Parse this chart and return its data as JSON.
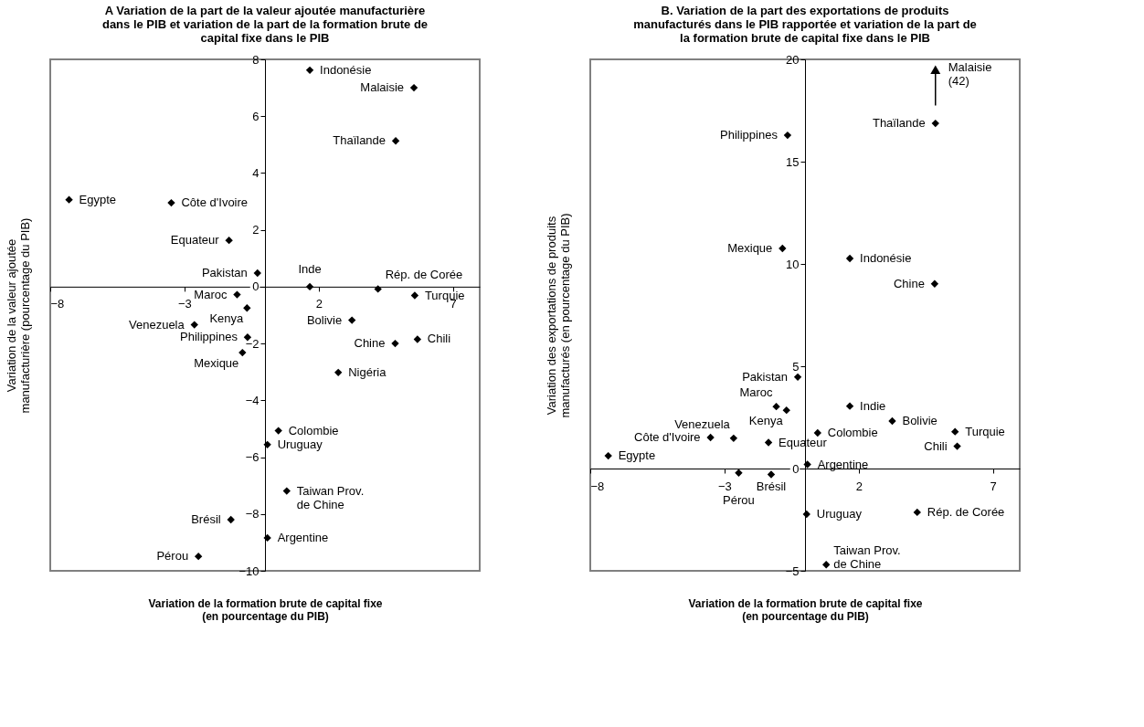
{
  "chart_data": [
    {
      "type": "scatter",
      "title": "A  Variation de la part de la valeur ajoutée manufacturière dans le PIB et variation de la part de la formation brute de capital fixe dans le PIB",
      "xlabel": "Variation de la formation brute de capital fixe (en pourcentage du PIB)",
      "ylabel": "Variation de la valeur ajoutée manufacturière (pourcentage du PIB)",
      "xlim": [
        -8,
        8
      ],
      "ylim": [
        -10,
        8
      ],
      "xticks": [
        -8,
        -3,
        2,
        7
      ],
      "yticks": [
        -10,
        -8,
        -6,
        -4,
        -2,
        0,
        2,
        4,
        6,
        8
      ],
      "grid": false,
      "marker": "diamond",
      "series": [
        {
          "color": "#000000",
          "x": [
            1.67,
            5.55,
            4.87,
            -7.3,
            -3.49,
            -1.34,
            -0.28,
            1.67,
            4.21,
            -1.04,
            5.58,
            -0.67,
            -2.63,
            3.24,
            -0.65,
            -0.84,
            4.85,
            5.68,
            2.73,
            0.5,
            0.09,
            0.81,
            -1.27,
            0.09,
            -2.48
          ],
          "values": [
            7.62,
            7.0,
            5.13,
            3.06,
            2.95,
            1.63,
            0.48,
            0.0,
            -0.08,
            -0.28,
            -0.31,
            -0.75,
            -1.34,
            -1.18,
            -1.78,
            -2.32,
            -2.0,
            -1.85,
            -3.02,
            -5.07,
            -5.56,
            -7.19,
            -8.2,
            -8.84,
            -9.49
          ]
        }
      ],
      "annotations": [
        {
          "text": "Indonésie",
          "x": 1.67,
          "y": 7.62
        },
        {
          "text": "Malaisie",
          "x": 5.55,
          "y": 7.0
        },
        {
          "text": "Thaïlande",
          "x": 4.87,
          "y": 5.13
        },
        {
          "text": "Egypte",
          "x": -7.3,
          "y": 3.06
        },
        {
          "text": "Côte d'Ivoire",
          "x": -3.49,
          "y": 2.95
        },
        {
          "text": "Equateur",
          "x": -1.34,
          "y": 1.63
        },
        {
          "text": "Pakistan",
          "x": -0.28,
          "y": 0.48
        },
        {
          "text": "Inde",
          "x": 1.67,
          "y": 0.0
        },
        {
          "text": "Rép. de Corée",
          "x": 4.21,
          "y": -0.08
        },
        {
          "text": "Maroc",
          "x": -1.04,
          "y": -0.28
        },
        {
          "text": "Turquie",
          "x": 5.58,
          "y": -0.31
        },
        {
          "text": "Kenya",
          "x": -0.67,
          "y": -0.75
        },
        {
          "text": "Venezuela",
          "x": -2.63,
          "y": -1.34
        },
        {
          "text": "Bolivie",
          "x": 3.24,
          "y": -1.18
        },
        {
          "text": "Philippines",
          "x": -0.65,
          "y": -1.78
        },
        {
          "text": "Mexique",
          "x": -0.84,
          "y": -2.32
        },
        {
          "text": "Chine",
          "x": 4.85,
          "y": -2.0
        },
        {
          "text": "Chili",
          "x": 5.68,
          "y": -1.85
        },
        {
          "text": "Nigéria",
          "x": 2.73,
          "y": -3.02
        },
        {
          "text": "Colombie",
          "x": 0.5,
          "y": -5.07
        },
        {
          "text": "Uruguay",
          "x": 0.09,
          "y": -5.56
        },
        {
          "text": "Taiwan Prov.\nde Chine",
          "x": 0.81,
          "y": -7.19
        },
        {
          "text": "Brésil",
          "x": -1.27,
          "y": -8.2
        },
        {
          "text": "Argentine",
          "x": 0.09,
          "y": -8.84
        },
        {
          "text": "Pérou",
          "x": -2.48,
          "y": -9.49
        }
      ]
    },
    {
      "type": "scatter",
      "title": "B.  Variation de la part des exportations de produits manufacturés dans le PIB rapportée et variation de la part de la formation brute de capital fixe dans le PIB",
      "xlabel": "Variation de la formation brute de capital fixe (en pourcentage du PIB)",
      "ylabel": "Variation des exportations de produits manufacturés (en pourcentage du PIB)",
      "xlim": [
        -8,
        8
      ],
      "ylim": [
        -5,
        20
      ],
      "xticks": [
        -8,
        -3,
        2,
        7
      ],
      "yticks": [
        -5,
        0,
        5,
        10,
        15,
        20
      ],
      "grid": false,
      "marker": "diamond",
      "series": [
        {
          "color": "#000000",
          "x": [
            4.86,
            -0.65,
            -0.84,
            1.67,
            4.83,
            -0.27,
            -1.07,
            -0.69,
            1.67,
            3.25,
            0.47,
            5.59,
            5.67,
            -3.52,
            -2.66,
            -1.36,
            -7.33,
            0.09,
            -2.47,
            -1.26,
            0.06,
            4.18,
            0.79
          ],
          "values": [
            16.87,
            16.29,
            10.76,
            10.27,
            9.03,
            4.47,
            3.03,
            2.85,
            3.05,
            2.32,
            1.74,
            1.8,
            1.09,
            1.52,
            1.48,
            1.27,
            0.62,
            0.2,
            -0.21,
            -0.29,
            -2.23,
            -2.14,
            -4.7
          ]
        }
      ],
      "annotations": [
        {
          "text": "Thaïlande",
          "x": 4.86,
          "y": 16.87
        },
        {
          "text": "Philippines",
          "x": -0.65,
          "y": 16.29
        },
        {
          "text": "Mexique",
          "x": -0.84,
          "y": 10.76
        },
        {
          "text": "Indonésie",
          "x": 1.67,
          "y": 10.27
        },
        {
          "text": "Chine",
          "x": 4.83,
          "y": 9.03
        },
        {
          "text": "Pakistan",
          "x": -0.27,
          "y": 4.47
        },
        {
          "text": "Maroc",
          "x": -1.07,
          "y": 3.03
        },
        {
          "text": "Kenya",
          "x": -0.69,
          "y": 2.85
        },
        {
          "text": "Indie",
          "x": 1.67,
          "y": 3.05
        },
        {
          "text": "Bolivie",
          "x": 3.25,
          "y": 2.32
        },
        {
          "text": "Colombie",
          "x": 0.47,
          "y": 1.74
        },
        {
          "text": "Turquie",
          "x": 5.59,
          "y": 1.8
        },
        {
          "text": "Chili",
          "x": 5.67,
          "y": 1.09
        },
        {
          "text": "Côte d'Ivoire",
          "x": -3.52,
          "y": 1.52
        },
        {
          "text": "Venezuela",
          "x": -2.66,
          "y": 1.48
        },
        {
          "text": "Equateur",
          "x": -1.36,
          "y": 1.27
        },
        {
          "text": "Egypte",
          "x": -7.33,
          "y": 0.62
        },
        {
          "text": "Argentine",
          "x": 0.09,
          "y": 0.2
        },
        {
          "text": "Pérou",
          "x": -2.47,
          "y": -0.21
        },
        {
          "text": "Brésil",
          "x": -1.26,
          "y": -0.29
        },
        {
          "text": "Uruguay",
          "x": 0.06,
          "y": -2.23
        },
        {
          "text": "Rép. de Corée",
          "x": 4.18,
          "y": -2.14
        },
        {
          "text": "Taiwan Prov.\nde Chine",
          "x": 0.79,
          "y": -4.7
        },
        {
          "text": "Malaisie\n(42)",
          "x": 4.86,
          "y": 19.5
        }
      ]
    }
  ]
}
